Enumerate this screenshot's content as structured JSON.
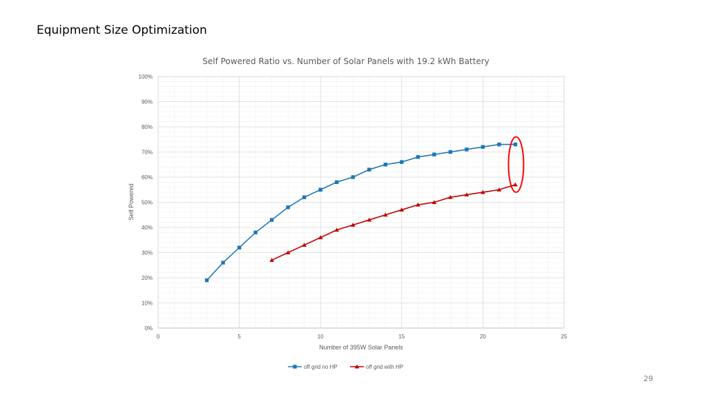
{
  "slide": {
    "title": "Equipment Size Optimization",
    "page_number": "29"
  },
  "chart_data": {
    "type": "line",
    "title": "Self Powered Ratio vs. Number of Solar Panels with 19.2 kWh Battery",
    "xlabel": "Number of 395W Solar Panels",
    "ylabel": "Self Powered",
    "xlim": [
      0,
      25
    ],
    "ylim": [
      0,
      1
    ],
    "x_ticks": [
      "0",
      "5",
      "10",
      "15",
      "20",
      "25"
    ],
    "y_ticks": [
      "0%",
      "10%",
      "20%",
      "30%",
      "40%",
      "50%",
      "60%",
      "70%",
      "80%",
      "90%",
      "100%"
    ],
    "grid": true,
    "legend": "bottom",
    "series": [
      {
        "name": "off grid no HP",
        "color": "#1f77b4",
        "marker": "square",
        "x": [
          3,
          4,
          5,
          6,
          7,
          8,
          9,
          10,
          11,
          12,
          13,
          14,
          15,
          16,
          17,
          18,
          19,
          20,
          21,
          22
        ],
        "y": [
          0.19,
          0.26,
          0.32,
          0.38,
          0.43,
          0.48,
          0.52,
          0.55,
          0.58,
          0.6,
          0.63,
          0.65,
          0.66,
          0.68,
          0.69,
          0.7,
          0.71,
          0.72,
          0.73,
          0.73
        ]
      },
      {
        "name": "off grid with HP",
        "color": "#c00000",
        "marker": "triangle",
        "x": [
          7,
          8,
          9,
          10,
          11,
          12,
          13,
          14,
          15,
          16,
          17,
          18,
          19,
          20,
          21,
          22
        ],
        "y": [
          0.27,
          0.3,
          0.33,
          0.36,
          0.39,
          0.41,
          0.43,
          0.45,
          0.47,
          0.49,
          0.5,
          0.52,
          0.53,
          0.54,
          0.55,
          0.57
        ]
      }
    ],
    "annotation": {
      "shape": "ellipse",
      "color": "#ff0000",
      "x": 22,
      "y_range": [
        0.54,
        0.76
      ]
    }
  }
}
